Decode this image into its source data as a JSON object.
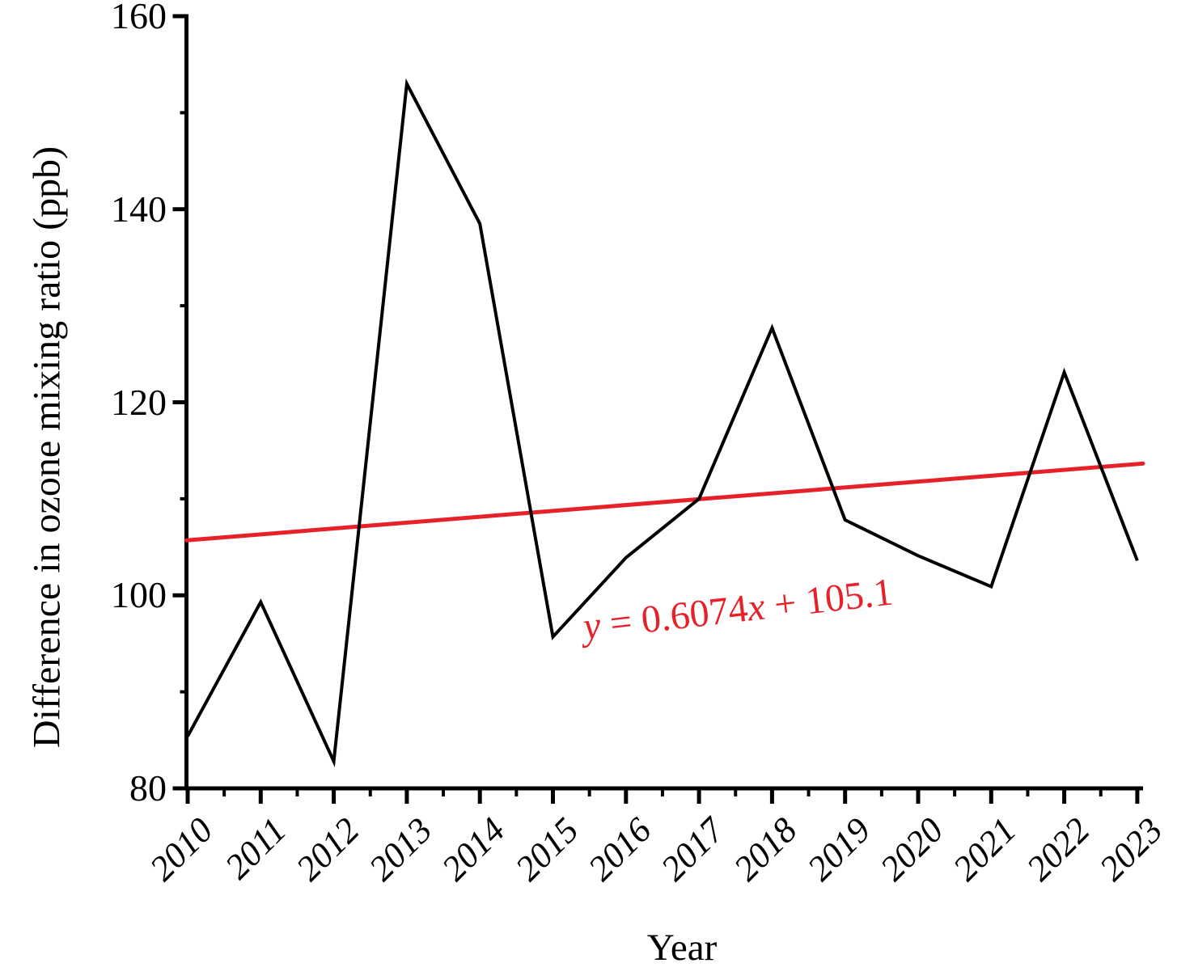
{
  "figure": {
    "background": "#ffffff",
    "axis_color": "#000000"
  },
  "chart_data": {
    "type": "line",
    "title": "",
    "xlabel": "Year",
    "ylabel": "Difference in ozone mixing ratio (ppb)",
    "categories": [
      "2010",
      "2011",
      "2012",
      "2013",
      "2014",
      "2015",
      "2016",
      "2017",
      "2018",
      "2019",
      "2020",
      "2021",
      "2022",
      "2023"
    ],
    "series": [
      {
        "name": "Difference in ozone mixing ratio",
        "color": "#000000",
        "values": [
          85.4,
          99.3,
          82.8,
          153.0,
          138.5,
          95.7,
          103.9,
          110.0,
          127.7,
          107.8,
          104.1,
          100.9,
          123.1,
          103.6
        ]
      }
    ],
    "trendline": {
      "slope": 0.6074,
      "intercept": 105.1,
      "x_index_range": [
        1,
        14
      ],
      "color": "#e62129",
      "equation_parts": {
        "var_y": "y",
        "middle": " = 0.6074",
        "var_x": "x",
        "tail": " + 105.1"
      }
    },
    "ylim": [
      80,
      160
    ],
    "yticks_major": [
      160,
      140,
      120,
      100,
      80
    ],
    "yticks_minor": [
      150,
      130,
      110,
      90
    ],
    "x_minor_ticks_between_years": true,
    "grid": false,
    "legend": "none"
  }
}
